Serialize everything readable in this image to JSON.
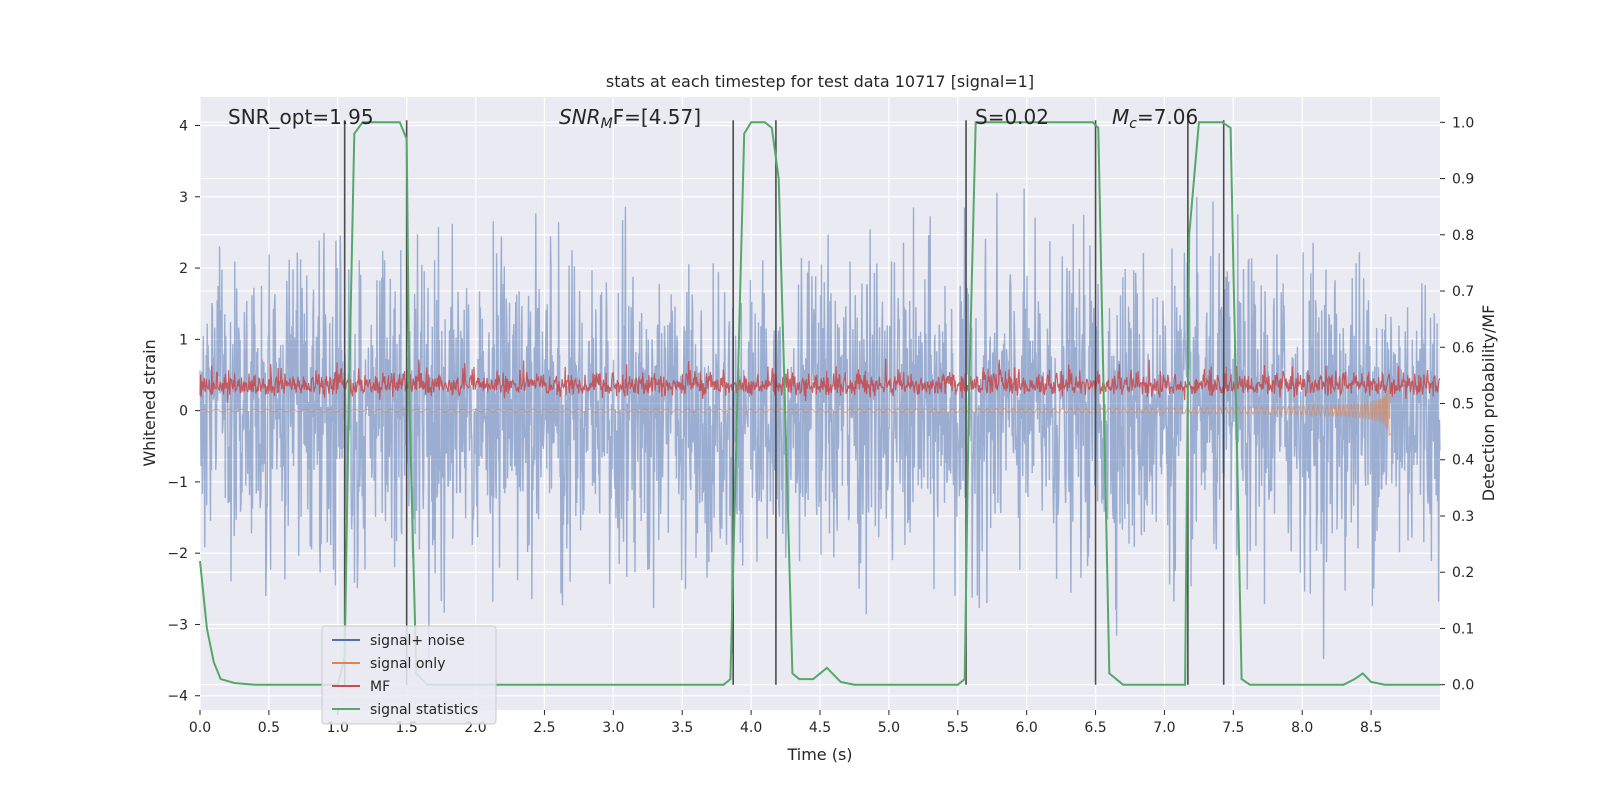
{
  "chart_data": {
    "type": "line",
    "title": "stats at each timestep for test data 10717 [signal=1]",
    "xlabel": "Time (s)",
    "ylabel": "Whitened strain",
    "y2label": "Detection probability/MF",
    "xlim": [
      0,
      9
    ],
    "ylim": [
      -4.2,
      4.4
    ],
    "y2lim": [
      -0.045,
      1.045
    ],
    "xticks": [
      "0.0",
      "0.5",
      "1.0",
      "1.5",
      "2.0",
      "2.5",
      "3.0",
      "3.5",
      "4.0",
      "4.5",
      "5.0",
      "5.5",
      "6.0",
      "6.5",
      "7.0",
      "7.5",
      "8.0",
      "8.5"
    ],
    "yticks": [
      "4",
      "3",
      "2",
      "1",
      "0",
      "−1",
      "−2",
      "−3",
      "−4"
    ],
    "y2ticks": [
      "1.0",
      "0.9",
      "0.8",
      "0.7",
      "0.6",
      "0.5",
      "0.4",
      "0.3",
      "0.2",
      "0.1",
      "0.0"
    ],
    "grid": true,
    "legend_position": "lower-left",
    "annotations": {
      "snr_opt": "SNR_opt=1.95",
      "snr_mf_main": "SNR",
      "snr_mf_sub": "M",
      "snr_mf_tail": "F=[4.57]",
      "s_label": "S=0.02",
      "mc_main": "M",
      "mc_sub": "c",
      "mc_tail": "=7.06"
    },
    "event_boundaries": [
      1.05,
      1.5,
      3.87,
      4.18,
      5.56,
      6.5,
      7.17,
      7.43
    ],
    "series": [
      {
        "name": "signal+ noise",
        "color": "#4c72b0",
        "style": "noise",
        "amplitude_std": 1.05,
        "range": [
          -3.8,
          3.6
        ]
      },
      {
        "name": "signal only",
        "color": "#dd8452",
        "style": "chirp",
        "t_end": 8.65,
        "peak_amplitude": 0.35
      },
      {
        "name": "MF",
        "color": "#c44e52",
        "style": "mf_noise",
        "mean": 0.32,
        "range": [
          0.0,
          0.95
        ]
      },
      {
        "name": "signal statistics",
        "color": "#55a868",
        "axis": "right",
        "x": [
          0.0,
          0.05,
          0.1,
          0.15,
          0.25,
          0.4,
          1.0,
          1.05,
          1.08,
          1.12,
          1.18,
          1.25,
          1.45,
          1.5,
          1.52,
          1.57,
          1.65,
          3.5,
          3.8,
          3.85,
          3.9,
          3.95,
          4.0,
          4.1,
          4.15,
          4.2,
          4.3,
          4.35,
          4.45,
          4.55,
          4.65,
          4.75,
          5.5,
          5.55,
          5.58,
          5.63,
          6.48,
          6.52,
          6.6,
          6.7,
          7.15,
          7.18,
          7.25,
          7.42,
          7.48,
          7.56,
          7.62,
          8.3,
          8.38,
          8.44,
          8.5,
          8.6,
          9.0
        ],
        "y": [
          0.22,
          0.1,
          0.04,
          0.01,
          0.003,
          0.0,
          0.0,
          0.05,
          0.5,
          0.98,
          1.0,
          1.0,
          1.0,
          0.97,
          0.5,
          0.02,
          0.0,
          0.0,
          0.0,
          0.01,
          0.5,
          0.98,
          1.0,
          1.0,
          0.99,
          0.9,
          0.02,
          0.01,
          0.01,
          0.03,
          0.005,
          0.0,
          0.0,
          0.01,
          0.5,
          1.0,
          1.0,
          0.99,
          0.02,
          0.0,
          0.0,
          0.8,
          1.0,
          1.0,
          0.99,
          0.01,
          0.0,
          0.0,
          0.01,
          0.02,
          0.005,
          0.0,
          0.0
        ]
      }
    ],
    "colors": {
      "plot_background": "#eaeaf2",
      "grid": "#ffffff",
      "boundary_lines": "#4d4d4d"
    }
  }
}
